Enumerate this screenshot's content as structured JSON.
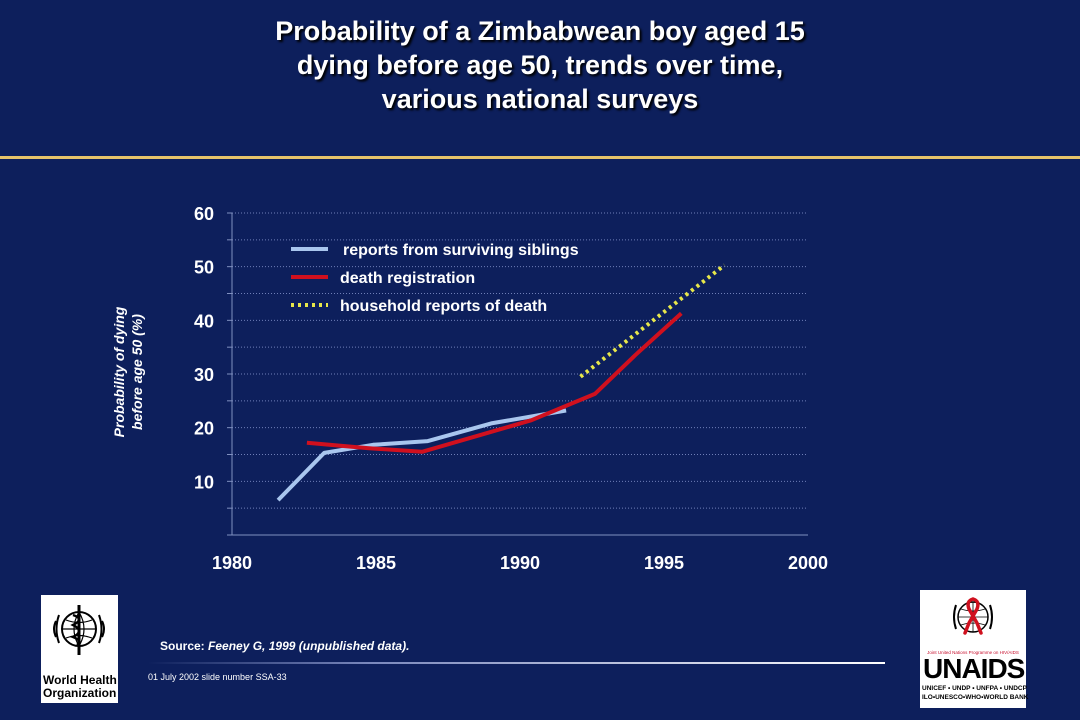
{
  "title": {
    "line1": "Probability of a Zimbabwean boy aged 15",
    "line2": "dying before age 50, trends over time,",
    "line3": "various national surveys"
  },
  "chart_data": {
    "type": "line",
    "xlim": [
      1980,
      2000
    ],
    "ylim": [
      0,
      60
    ],
    "x_ticks": [
      "1980",
      "1985",
      "1990",
      "1995",
      "2000"
    ],
    "y_ticks": [
      "60",
      "50",
      "40",
      "30",
      "20",
      "10"
    ],
    "ylabel_line1": "Probability of dying",
    "ylabel_line2": "before age 50 (%)",
    "grid": "horizontal dotted",
    "legend_position": "top-left",
    "series": [
      {
        "name": "reports from surviving siblings",
        "color": "#a9c6ee",
        "style": "solid",
        "points": [
          [
            1981.6,
            6.5
          ],
          [
            1983.2,
            15.3
          ],
          [
            1984.9,
            16.8
          ],
          [
            1986.8,
            17.5
          ],
          [
            1989.0,
            20.8
          ],
          [
            1991.6,
            23.2
          ]
        ]
      },
      {
        "name": "death registration",
        "color": "#d0101e",
        "style": "solid",
        "points": [
          [
            1982.6,
            17.2
          ],
          [
            1984.7,
            16.2
          ],
          [
            1986.6,
            15.5
          ],
          [
            1988.6,
            18.6
          ],
          [
            1990.4,
            21.4
          ],
          [
            1992.6,
            26.3
          ],
          [
            1994.0,
            33.5
          ],
          [
            1995.6,
            41.3
          ]
        ]
      },
      {
        "name": "household reports of death",
        "color": "#e8e84a",
        "style": "dotted",
        "points": [
          [
            1992.1,
            29.5
          ],
          [
            1997.1,
            50.3
          ]
        ]
      }
    ]
  },
  "footer": {
    "source_label": "Source:",
    "source_text": "Feeney G, 1999 (unpublished data).",
    "note": "01 July 2002 slide number SSA-33"
  },
  "who_logo": {
    "line1": "World Health",
    "line2": "Organization",
    "icon": "who-emblem-icon"
  },
  "unaids_logo": {
    "tagline": "Joint United Nations Programme on HIV/AIDS",
    "word": "UNAIDS",
    "partners_line1": "UNICEF • UNDP • UNFPA • UNDCP",
    "partners_line2": "ILO•UNESCO•WHO•WORLD BANK",
    "icon": "un-emblem-ribbon-icon"
  }
}
